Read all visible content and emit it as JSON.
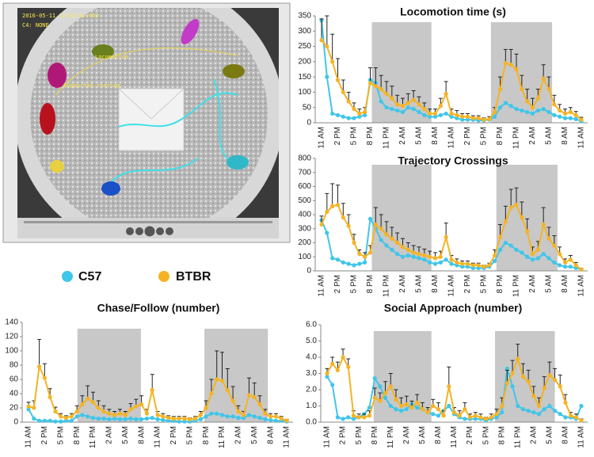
{
  "video": {
    "timestamp": "2016-05-11 12:33:52.652",
    "camera": "C4: NONE",
    "behaviors": [
      "Supported rearing",
      "Locomotion"
    ]
  },
  "chart_data": [
    {
      "type": "line",
      "title": "Locomotion time (s)",
      "categories": [
        "11 AM",
        null,
        null,
        "2 PM",
        null,
        null,
        "5 PM",
        null,
        null,
        "8 PM",
        null,
        null,
        "11 PM",
        null,
        null,
        "2 AM",
        null,
        null,
        "5 AM",
        null,
        null,
        "8 AM",
        null,
        null,
        "11 AM",
        null,
        null,
        "2 PM",
        null,
        null,
        "5 PM",
        null,
        null,
        "8 PM",
        null,
        null,
        "11 PM",
        null,
        null,
        "2 AM",
        null,
        null,
        "5 AM",
        null,
        null,
        "8 AM",
        null,
        null,
        "11 AM"
      ],
      "ylim": [
        0,
        350
      ],
      "yticks": [
        0,
        50,
        100,
        150,
        200,
        250,
        300,
        350
      ],
      "shaded": [
        [
          9.3,
          20.3
        ],
        [
          31.3,
          42.6
        ]
      ],
      "shade_color": "#c8c8c8",
      "series": [
        {
          "name": "C57",
          "color": "#3fc6ea",
          "values": [
            335,
            150,
            30,
            25,
            20,
            15,
            15,
            20,
            25,
            140,
            130,
            70,
            50,
            45,
            40,
            35,
            50,
            45,
            35,
            25,
            20,
            20,
            25,
            30,
            20,
            15,
            10,
            10,
            10,
            8,
            8,
            10,
            20,
            50,
            65,
            55,
            45,
            40,
            35,
            30,
            40,
            45,
            35,
            25,
            20,
            15,
            15,
            12,
            5
          ]
        },
        {
          "name": "BTBR",
          "color": "#f5b324",
          "values": [
            270,
            250,
            200,
            140,
            100,
            70,
            45,
            30,
            35,
            130,
            120,
            110,
            95,
            80,
            60,
            55,
            65,
            75,
            60,
            45,
            30,
            30,
            55,
            95,
            30,
            25,
            20,
            20,
            15,
            15,
            10,
            12,
            35,
            110,
            195,
            190,
            175,
            110,
            70,
            50,
            80,
            145,
            110,
            60,
            40,
            30,
            35,
            25,
            10
          ],
          "errors": [
            70,
            100,
            90,
            70,
            40,
            30,
            20,
            15,
            15,
            50,
            60,
            45,
            40,
            40,
            30,
            25,
            30,
            30,
            25,
            20,
            15,
            15,
            25,
            40,
            15,
            15,
            10,
            10,
            8,
            8,
            6,
            8,
            15,
            40,
            45,
            50,
            50,
            45,
            40,
            30,
            30,
            45,
            40,
            30,
            20,
            15,
            15,
            12,
            8
          ]
        }
      ]
    },
    {
      "type": "line",
      "title": "Trajectory Crossings",
      "categories": [
        "11 AM",
        null,
        null,
        "2 PM",
        null,
        null,
        "5 PM",
        null,
        null,
        "8 PM",
        null,
        null,
        "11 PM",
        null,
        null,
        "2 AM",
        null,
        null,
        "5 AM",
        null,
        null,
        "8 AM",
        null,
        null,
        "11 AM",
        null,
        null,
        "2 PM",
        null,
        null,
        "5 PM",
        null,
        null,
        "8 PM",
        null,
        null,
        "11 PM",
        null,
        null,
        "2 AM",
        null,
        null,
        "5 AM",
        null,
        null,
        "8 AM",
        null,
        null,
        "11 AM"
      ],
      "ylim": [
        0,
        800
      ],
      "yticks": [
        0,
        100,
        200,
        300,
        400,
        500,
        600,
        700,
        800
      ],
      "shaded": [
        [
          9.3,
          20.3
        ],
        [
          32.3,
          43.6
        ]
      ],
      "shade_color": "#c8c8c8",
      "series": [
        {
          "color": "#3fc6ea",
          "values": [
            360,
            270,
            90,
            80,
            60,
            50,
            40,
            50,
            60,
            370,
            300,
            220,
            180,
            150,
            120,
            100,
            110,
            100,
            90,
            80,
            60,
            50,
            60,
            80,
            50,
            40,
            30,
            30,
            20,
            20,
            20,
            30,
            70,
            150,
            200,
            180,
            150,
            130,
            100,
            80,
            90,
            120,
            90,
            60,
            40,
            30,
            30,
            20,
            10
          ]
        },
        {
          "color": "#f5b324",
          "values": [
            330,
            420,
            460,
            470,
            380,
            320,
            200,
            120,
            100,
            130,
            330,
            300,
            260,
            230,
            200,
            170,
            150,
            130,
            120,
            110,
            100,
            90,
            100,
            240,
            80,
            60,
            50,
            50,
            40,
            40,
            30,
            40,
            110,
            240,
            350,
            450,
            470,
            380,
            280,
            120,
            150,
            330,
            230,
            180,
            120,
            60,
            80,
            40,
            10
          ],
          "errors": [
            60,
            130,
            160,
            140,
            100,
            80,
            60,
            30,
            30,
            50,
            120,
            100,
            90,
            80,
            70,
            60,
            50,
            50,
            50,
            45,
            40,
            40,
            40,
            100,
            30,
            25,
            20,
            20,
            15,
            15,
            10,
            15,
            40,
            90,
            110,
            130,
            120,
            110,
            90,
            50,
            60,
            120,
            80,
            70,
            50,
            25,
            30,
            20,
            8
          ]
        }
      ]
    },
    {
      "type": "line",
      "title": "Chase/Follow (number)",
      "categories": [
        "11 AM",
        null,
        null,
        "2 PM",
        null,
        null,
        "5 PM",
        null,
        null,
        "8 PM",
        null,
        null,
        "11 PM",
        null,
        null,
        "2 AM",
        null,
        null,
        "5 AM",
        null,
        null,
        "8 AM",
        null,
        null,
        "11 AM",
        null,
        null,
        "2 PM",
        null,
        null,
        "5 PM",
        null,
        null,
        "8 PM",
        null,
        null,
        "11 PM",
        null,
        null,
        "2 AM",
        null,
        null,
        "5 AM",
        null,
        null,
        "8 AM",
        null,
        null,
        "11 AM"
      ],
      "ylim": [
        0,
        140
      ],
      "yticks": [
        0,
        20,
        40,
        60,
        80,
        100,
        120,
        140
      ],
      "shaded": [
        [
          9.1,
          20.9
        ],
        [
          32.7,
          44.5
        ]
      ],
      "shade_color": "#c8c8c8",
      "series": [
        {
          "color": "#3fc6ea",
          "values": [
            18,
            5,
            2,
            2,
            2,
            1,
            1,
            2,
            2,
            8,
            10,
            8,
            6,
            5,
            5,
            4,
            5,
            4,
            4,
            5,
            4,
            4,
            5,
            6,
            4,
            3,
            2,
            2,
            1,
            1,
            1,
            2,
            4,
            8,
            12,
            12,
            10,
            8,
            8,
            6,
            6,
            10,
            8,
            6,
            4,
            3,
            2,
            2,
            1
          ]
        },
        {
          "color": "#f5b324",
          "values": [
            22,
            20,
            78,
            62,
            35,
            15,
            8,
            6,
            8,
            15,
            25,
            33,
            28,
            20,
            15,
            12,
            10,
            12,
            10,
            18,
            22,
            25,
            12,
            45,
            10,
            8,
            6,
            5,
            5,
            5,
            4,
            5,
            10,
            20,
            40,
            60,
            58,
            45,
            30,
            15,
            10,
            38,
            35,
            25,
            12,
            8,
            8,
            5,
            2
          ],
          "errors": [
            6,
            10,
            38,
            20,
            12,
            6,
            4,
            3,
            4,
            8,
            12,
            18,
            14,
            10,
            8,
            6,
            5,
            6,
            5,
            8,
            10,
            12,
            6,
            22,
            5,
            4,
            3,
            3,
            3,
            3,
            2,
            3,
            5,
            10,
            20,
            40,
            40,
            30,
            20,
            8,
            5,
            24,
            20,
            12,
            6,
            4,
            4,
            3,
            2
          ]
        }
      ]
    },
    {
      "type": "line",
      "title": "Social  Approach (number)",
      "categories": [
        "11 AM",
        null,
        null,
        "2 PM",
        null,
        null,
        "5 PM",
        null,
        null,
        "8 PM",
        null,
        null,
        "11 PM",
        null,
        null,
        "2 AM",
        null,
        null,
        "5 AM",
        null,
        null,
        "8 AM",
        null,
        null,
        "11 AM",
        null,
        null,
        "2 PM",
        null,
        null,
        "5 PM",
        null,
        null,
        "8 PM",
        null,
        null,
        "11 PM",
        null,
        null,
        "2 AM",
        null,
        null,
        "5 AM",
        null,
        null,
        "8 AM",
        null,
        null,
        "11 AM"
      ],
      "ylim": [
        0,
        6
      ],
      "yticks": [
        {
          "value": 0,
          "label": "0.0"
        },
        {
          "value": 1,
          "label": "1.0"
        },
        {
          "value": 2,
          "label": "2.0"
        },
        {
          "value": 3,
          "label": "3.0"
        },
        {
          "value": 4,
          "label": "4.0"
        },
        {
          "value": 5,
          "label": "5.0"
        },
        {
          "value": 6,
          "label": "6.0"
        }
      ],
      "shaded": [
        [
          8.8,
          19.7
        ],
        [
          31.7,
          43
        ]
      ],
      "shade_color": "#c8c8c8",
      "series": [
        {
          "color": "#3fc6ea",
          "values": [
            2.8,
            2.3,
            0.3,
            0.2,
            0.3,
            0.2,
            0.3,
            0.5,
            0.9,
            2.7,
            2.2,
            1.5,
            1.0,
            0.8,
            0.7,
            0.8,
            1.1,
            0.9,
            0.8,
            0.6,
            0.5,
            0.4,
            0.7,
            1.0,
            0.5,
            0.3,
            0.2,
            0.2,
            0.2,
            0.2,
            0.1,
            0.2,
            0.3,
            0.6,
            3.3,
            2.2,
            1.0,
            0.8,
            0.7,
            0.6,
            0.5,
            0.8,
            1.0,
            0.7,
            0.5,
            0.3,
            0.3,
            0.2,
            1.0
          ]
        },
        {
          "color": "#f5b324",
          "values": [
            3.0,
            3.6,
            3.2,
            4.0,
            3.4,
            0.4,
            0.3,
            0.3,
            0.4,
            1.5,
            1.3,
            1.8,
            2.2,
            1.4,
            1.0,
            1.1,
            0.9,
            1.2,
            0.8,
            0.6,
            1.0,
            0.8,
            0.4,
            2.2,
            0.6,
            0.4,
            0.8,
            0.3,
            0.4,
            0.3,
            0.2,
            0.3,
            0.5,
            1.0,
            2.4,
            3.0,
            3.9,
            2.8,
            2.5,
            1.6,
            1.0,
            2.1,
            2.9,
            2.6,
            2.2,
            1.2,
            0.4,
            0.3,
            0.1
          ],
          "errors": [
            0.3,
            0.4,
            0.5,
            0.5,
            0.5,
            0.3,
            0.2,
            0.2,
            0.3,
            0.6,
            0.5,
            0.7,
            0.8,
            0.6,
            0.5,
            0.5,
            0.4,
            0.5,
            0.4,
            0.3,
            0.4,
            0.4,
            0.3,
            1.2,
            0.3,
            0.3,
            0.4,
            0.2,
            0.2,
            0.2,
            0.1,
            0.2,
            0.3,
            0.5,
            0.8,
            0.8,
            0.9,
            0.8,
            0.7,
            0.6,
            0.5,
            0.7,
            0.8,
            0.7,
            0.7,
            0.5,
            0.2,
            0.2,
            0.1
          ]
        }
      ]
    }
  ]
}
